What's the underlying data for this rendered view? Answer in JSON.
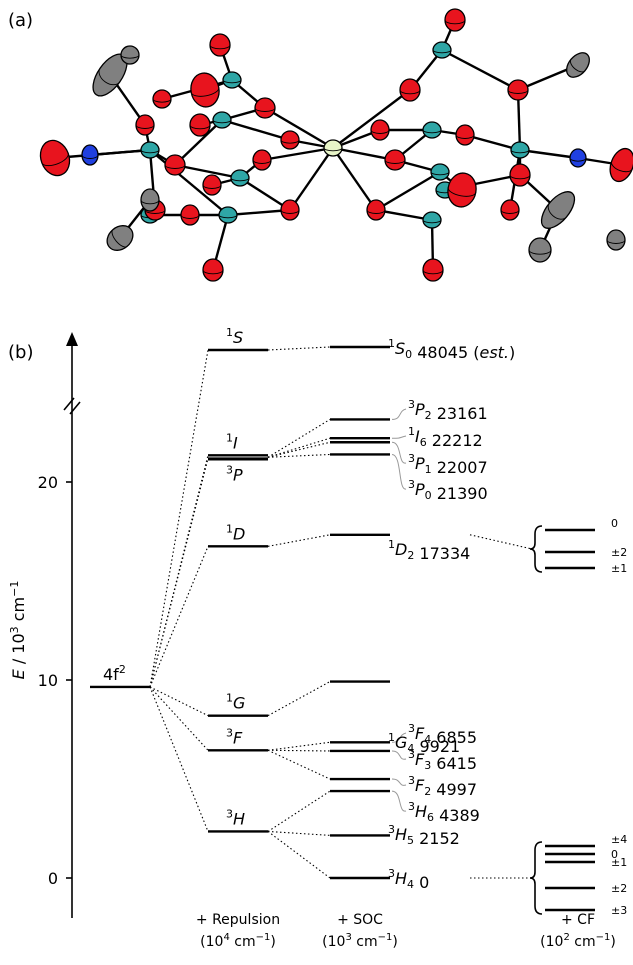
{
  "panel_a": {
    "label": "(a)",
    "colors": {
      "oxygen": "#e8141e",
      "metal": "#2fa6a6",
      "carbon": "#808080",
      "nitrogen": "#2040e0",
      "center": "#e8f5c8"
    }
  },
  "panel_b": {
    "label": "(b)",
    "axis": {
      "title_main": "E",
      "title_unit": "10",
      "title_exp": "3",
      "title_unit2": "cm",
      "title_exp2": "−1",
      "ticks": [
        "0",
        "10",
        "20"
      ]
    },
    "config": {
      "base": "4f",
      "sup": "2"
    },
    "terms": [
      {
        "mult": "1",
        "L": "S"
      },
      {
        "mult": "1",
        "L": "I"
      },
      {
        "mult": "3",
        "L": "P"
      },
      {
        "mult": "1",
        "L": "D"
      },
      {
        "mult": "1",
        "L": "G"
      },
      {
        "mult": "3",
        "L": "F"
      },
      {
        "mult": "3",
        "L": "H"
      }
    ],
    "levels": [
      {
        "mult": "1",
        "L": "S",
        "J": "0",
        "energy": "48045",
        "note": "(est.)"
      },
      {
        "mult": "3",
        "L": "P",
        "J": "2",
        "energy": "23161"
      },
      {
        "mult": "1",
        "L": "I",
        "J": "6",
        "energy": "22212"
      },
      {
        "mult": "3",
        "L": "P",
        "J": "1",
        "energy": "22007"
      },
      {
        "mult": "3",
        "L": "P",
        "J": "0",
        "energy": "21390"
      },
      {
        "mult": "1",
        "L": "D",
        "J": "2",
        "energy": "17334"
      },
      {
        "mult": "1",
        "L": "G",
        "J": "4",
        "energy": "9921"
      },
      {
        "mult": "3",
        "L": "F",
        "J": "4",
        "energy": "6855"
      },
      {
        "mult": "3",
        "L": "F",
        "J": "3",
        "energy": "6415"
      },
      {
        "mult": "3",
        "L": "F",
        "J": "2",
        "energy": "4997"
      },
      {
        "mult": "3",
        "L": "H",
        "J": "6",
        "energy": "4389"
      },
      {
        "mult": "3",
        "L": "H",
        "J": "5",
        "energy": "2152"
      },
      {
        "mult": "3",
        "L": "H",
        "J": "4",
        "energy": "0"
      }
    ],
    "cf_1D2": [
      "0",
      "±2",
      "±1"
    ],
    "cf_3H4": [
      "±4",
      "0",
      "±1",
      "±2",
      "±3"
    ],
    "columns": [
      {
        "label": "+ Repulsion",
        "unit": "(10",
        "exp": "4",
        "unit2": " cm",
        "exp2": "−1",
        "close": ")"
      },
      {
        "label": "+ SOC",
        "unit": "(10",
        "exp": "3",
        "unit2": " cm",
        "exp2": "−1",
        "close": ")"
      },
      {
        "label": "+ CF",
        "unit": "(10",
        "exp": "2",
        "unit2": " cm",
        "exp2": "−1",
        "close": ")"
      }
    ]
  }
}
